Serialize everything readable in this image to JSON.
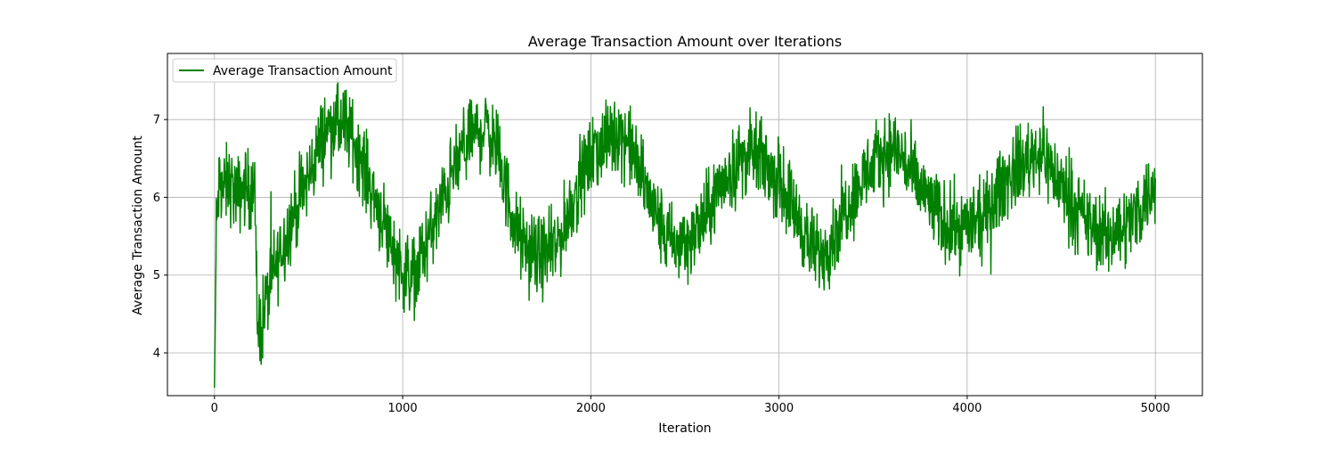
{
  "chart_data": {
    "type": "line",
    "title": "Average Transaction Amount over Iterations",
    "xlabel": "Iteration",
    "ylabel": "Average Transaction Amount",
    "xlim": [
      -250,
      5250
    ],
    "ylim": [
      3.45,
      7.85
    ],
    "xticks": [
      0,
      1000,
      2000,
      3000,
      4000,
      5000
    ],
    "yticks": [
      4,
      5,
      6,
      7
    ],
    "grid": true,
    "legend_position": "upper-left",
    "series": [
      {
        "name": "Average Transaction Amount",
        "color": "#008000",
        "x": [
          0,
          10,
          25,
          50,
          80,
          120,
          160,
          200,
          215,
          225,
          240,
          260,
          300,
          350,
          400,
          450,
          500,
          550,
          600,
          650,
          700,
          750,
          800,
          850,
          900,
          950,
          1000,
          1050,
          1100,
          1150,
          1200,
          1250,
          1300,
          1350,
          1400,
          1450,
          1500,
          1550,
          1600,
          1650,
          1700,
          1750,
          1800,
          1850,
          1900,
          1950,
          2000,
          2050,
          2100,
          2150,
          2200,
          2250,
          2300,
          2350,
          2400,
          2450,
          2500,
          2550,
          2600,
          2650,
          2700,
          2750,
          2800,
          2850,
          2900,
          2950,
          3000,
          3050,
          3100,
          3150,
          3200,
          3250,
          3300,
          3350,
          3400,
          3450,
          3500,
          3550,
          3600,
          3650,
          3700,
          3750,
          3800,
          3850,
          3900,
          3950,
          4000,
          4050,
          4100,
          4150,
          4200,
          4250,
          4300,
          4350,
          4400,
          4450,
          4500,
          4550,
          4600,
          4650,
          4700,
          4750,
          4800,
          4850,
          4900,
          4950,
          5000
        ],
        "values": [
          3.55,
          5.6,
          6.2,
          6.1,
          6.2,
          6.0,
          6.15,
          6.05,
          6.1,
          4.4,
          4.3,
          4.5,
          4.9,
          5.3,
          5.65,
          5.95,
          6.25,
          6.65,
          6.9,
          6.95,
          6.9,
          6.7,
          6.35,
          6.0,
          5.7,
          5.35,
          5.05,
          4.95,
          5.25,
          5.55,
          5.85,
          6.2,
          6.5,
          6.75,
          6.85,
          6.9,
          6.6,
          6.1,
          5.6,
          5.35,
          5.25,
          5.25,
          5.3,
          5.55,
          5.95,
          6.25,
          6.5,
          6.65,
          6.75,
          6.85,
          6.7,
          6.4,
          6.05,
          5.75,
          5.5,
          5.35,
          5.45,
          5.5,
          5.7,
          5.95,
          6.2,
          6.35,
          6.5,
          6.55,
          6.5,
          6.35,
          6.2,
          6.0,
          5.75,
          5.45,
          5.25,
          5.35,
          5.55,
          5.85,
          6.05,
          6.25,
          6.4,
          6.55,
          6.65,
          6.55,
          6.3,
          6.1,
          5.95,
          5.75,
          5.65,
          5.6,
          5.65,
          5.65,
          5.75,
          6.0,
          6.2,
          6.35,
          6.45,
          6.55,
          6.6,
          6.35,
          6.15,
          5.95,
          5.75,
          5.65,
          5.55,
          5.5,
          5.6,
          5.65,
          5.8,
          6.0,
          6.15
        ]
      }
    ]
  }
}
